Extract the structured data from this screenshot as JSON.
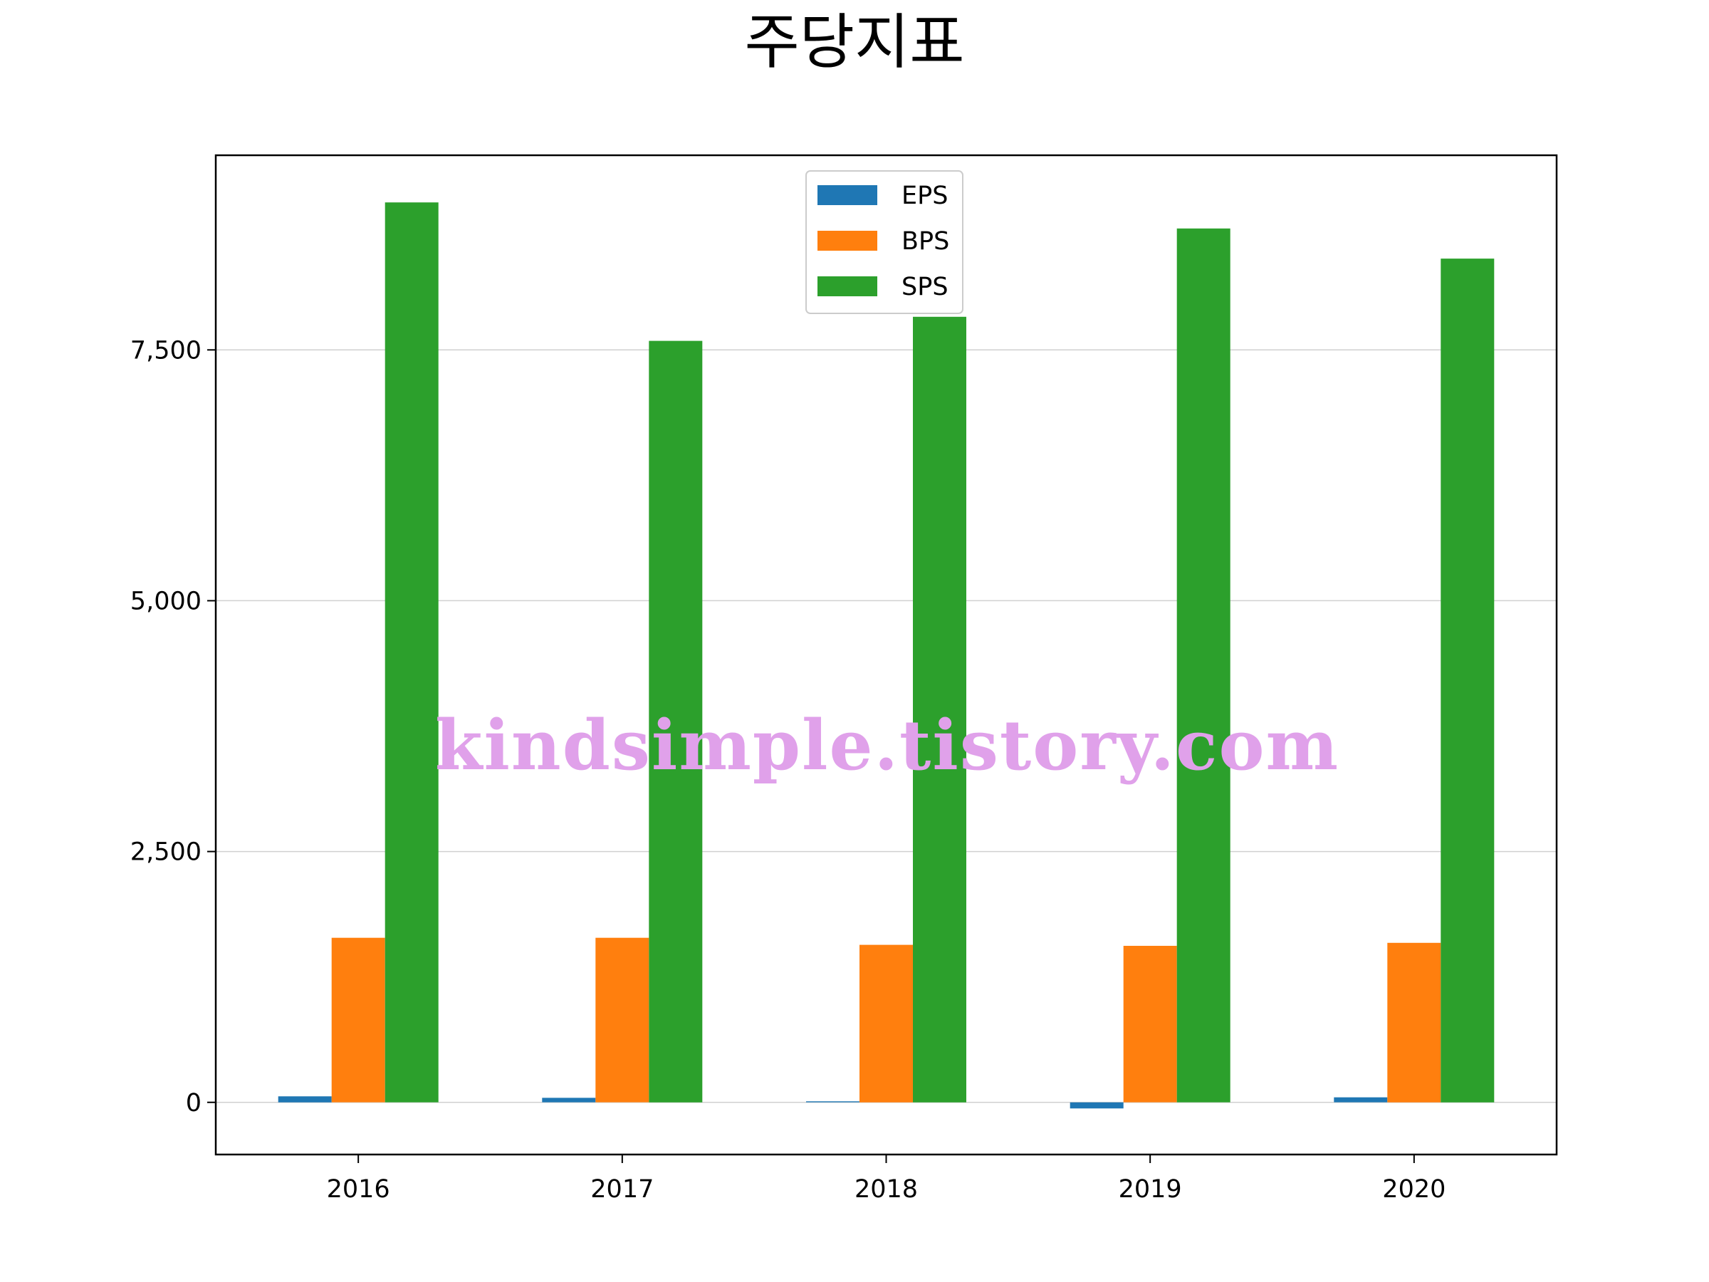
{
  "chart_data": {
    "type": "bar",
    "title": "주당지표",
    "xlabel": "",
    "ylabel": "",
    "categories": [
      "2016",
      "2017",
      "2018",
      "2019",
      "2020"
    ],
    "series": [
      {
        "name": "EPS",
        "color": "#1f77b4",
        "values": [
          60,
          45,
          10,
          -60,
          50
        ]
      },
      {
        "name": "BPS",
        "color": "#ff7f0e",
        "values": [
          1640,
          1640,
          1570,
          1560,
          1590
        ]
      },
      {
        "name": "SPS",
        "color": "#2ca02c",
        "values": [
          8970,
          7590,
          7830,
          8710,
          8410
        ]
      }
    ],
    "ylim": [
      -520,
      9440
    ],
    "yticks": [
      0,
      2500,
      5000,
      7500
    ],
    "ytick_labels": [
      "0",
      "2,500",
      "5,000",
      "7,500"
    ],
    "grid": "horizontal",
    "legend_position": "top-center",
    "watermark": "kindsimple.tistory.com"
  }
}
